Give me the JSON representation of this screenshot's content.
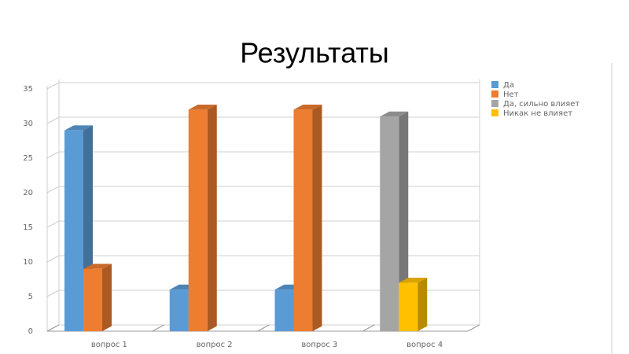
{
  "chart_data": {
    "type": "bar3d",
    "title": "Результаты",
    "categories": [
      "вопрос 1",
      "вопрос 2",
      "вопрос 3",
      "вопрос 4"
    ],
    "series": [
      {
        "name": "Да",
        "color": "#5b9bd5",
        "values": [
          29,
          6,
          6,
          null
        ]
      },
      {
        "name": "Нет",
        "color": "#ed7d31",
        "values": [
          9,
          32,
          32,
          null
        ]
      },
      {
        "name": "Да, сильно влияет",
        "color": "#a5a5a5",
        "values": [
          null,
          null,
          null,
          31
        ]
      },
      {
        "name": "Никак не влияет",
        "color": "#ffc000",
        "values": [
          null,
          null,
          null,
          7
        ]
      }
    ],
    "ylim": [
      0,
      35
    ],
    "yticks": [
      0,
      5,
      10,
      15,
      20,
      25,
      30,
      35
    ],
    "grid": true,
    "legend": "right"
  }
}
